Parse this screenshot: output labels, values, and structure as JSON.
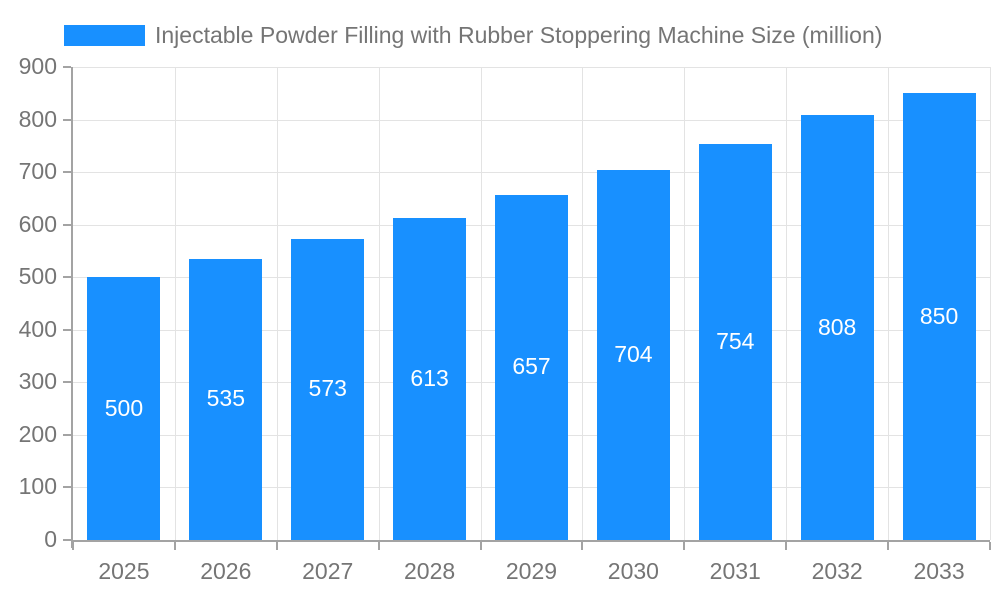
{
  "chart_data": {
    "type": "bar",
    "title": "Injectable Powder Filling with Rubber Stoppering Machine Size (million)",
    "categories": [
      "2025",
      "2026",
      "2027",
      "2028",
      "2029",
      "2030",
      "2031",
      "2032",
      "2033"
    ],
    "values": [
      500,
      535,
      573,
      613,
      657,
      704,
      754,
      808,
      850
    ],
    "xlabel": "",
    "ylabel": "",
    "ylim": [
      0,
      900
    ],
    "ytick_step": 100,
    "grid": true,
    "legend_position": "top-left",
    "bar_value_labels_inside": true
  },
  "colors": {
    "bar": "#1890ff",
    "axis": "#a3a3a3",
    "grid": "#e3e3e3",
    "text": "#757575",
    "bar_label": "#ffffff",
    "background": "#ffffff"
  }
}
